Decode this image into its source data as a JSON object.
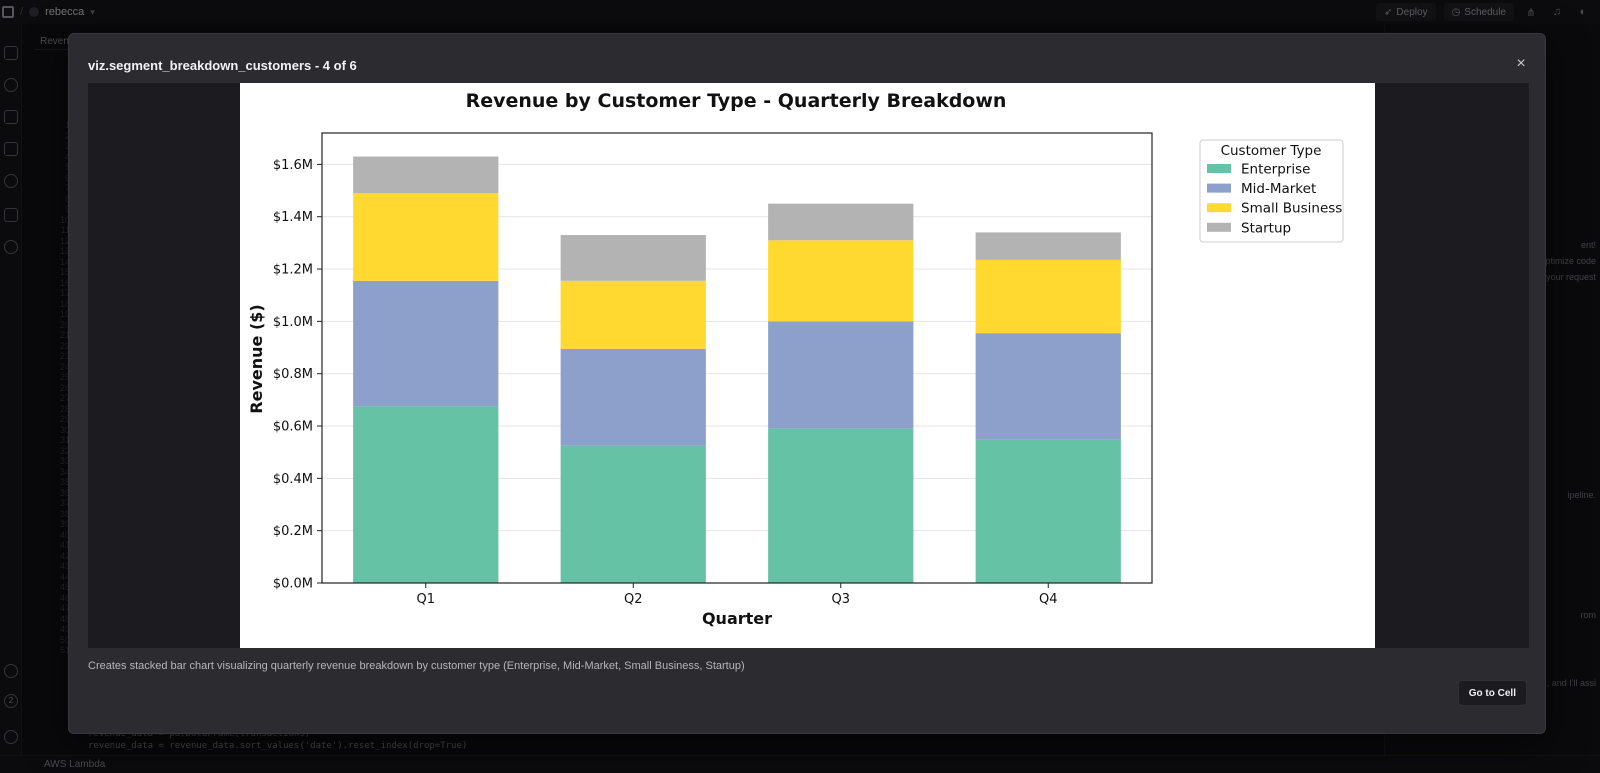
{
  "app": {
    "project_name": "rebecca",
    "tab_label": "Reven",
    "deploy_label": "Deploy",
    "schedule_label": "Schedule",
    "status_bar_label": "AWS Lambda",
    "code_lines": [
      "revenue_data = pd.DataFrame(transactions)",
      "revenue_data = revenue_data.sort_values('date').reset_index(drop=True)"
    ],
    "gutter_numbers": [
      "1",
      "2",
      "3",
      "4",
      "5",
      "6",
      "7",
      "8",
      "9",
      "10",
      "11",
      "12",
      "13",
      "14",
      "15",
      "16",
      "17",
      "18",
      "19",
      "20",
      "21",
      "22",
      "23",
      "24",
      "25",
      "26",
      "27",
      "28",
      "29",
      "30",
      "31",
      "32",
      "33",
      "34",
      "35",
      "36",
      "37",
      "38",
      "39",
      "40",
      "41",
      "42",
      "43",
      "44",
      "45",
      "46",
      "47",
      "48",
      "49",
      "50",
      "51"
    ],
    "side_panel_fragments": [
      "ent!",
      "optimize code",
      "your request",
      "ipeline.",
      "rom",
      ", and I'll assi"
    ],
    "badge_count": "2"
  },
  "modal": {
    "title": "viz.segment_breakdown_customers - 4 of 6",
    "close_symbol": "×",
    "caption": "Creates stacked bar chart visualizing quarterly revenue breakdown by customer type (Enterprise, Mid-Market, Small Business, Startup)",
    "go_to_cell_label": "Go to Cell"
  },
  "chart_data": {
    "type": "bar",
    "stacked": true,
    "title": "Revenue by Customer Type - Quarterly Breakdown",
    "xlabel": "Quarter",
    "ylabel": "Revenue ($)",
    "categories": [
      "Q1",
      "Q2",
      "Q3",
      "Q4"
    ],
    "ylim": [
      0,
      1.72
    ],
    "yticks": [
      0,
      0.2,
      0.4,
      0.6,
      0.8,
      1.0,
      1.2,
      1.4,
      1.6
    ],
    "ytick_labels": [
      "$0.0M",
      "$0.2M",
      "$0.4M",
      "$0.6M",
      "$0.8M",
      "$1.0M",
      "$1.2M",
      "$1.4M",
      "$1.6M"
    ],
    "grid": true,
    "legend_title": "Customer Type",
    "legend_position": "top-right, outside plot",
    "series": [
      {
        "name": "Enterprise",
        "color": "#66c2a5",
        "values": [
          0.675,
          0.525,
          0.59,
          0.55
        ]
      },
      {
        "name": "Mid-Market",
        "color": "#8da0cb",
        "values": [
          0.48,
          0.37,
          0.41,
          0.405
        ]
      },
      {
        "name": "Small Business",
        "color": "#ffd92f",
        "values": [
          0.335,
          0.26,
          0.31,
          0.28
        ]
      },
      {
        "name": "Startup",
        "color": "#b3b3b3",
        "values": [
          0.14,
          0.175,
          0.14,
          0.105
        ]
      }
    ]
  }
}
